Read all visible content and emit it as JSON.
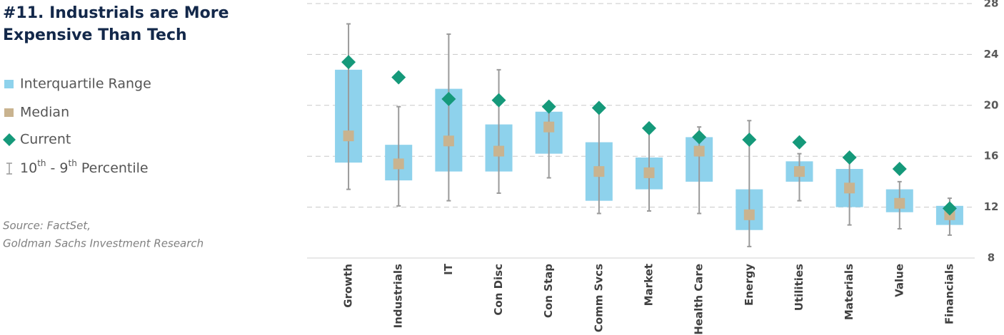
{
  "chart_data": {
    "type": "box",
    "title": [
      "#11. Industrials are More",
      "Expensive Than Tech"
    ],
    "source": [
      "Source: FactSet,",
      "Goldman Sachs Investment Research"
    ],
    "categories": [
      "Growth",
      "Industrials",
      "IT",
      "Con Disc",
      "Con Stap",
      "Comm Svcs",
      "Market",
      "Health Care",
      "Energy",
      "Utilities",
      "Materials",
      "Value",
      "Financials"
    ],
    "iqr": {
      "name": "Interquartile Range",
      "color": "#8ed2ec",
      "high": [
        22.8,
        16.9,
        21.3,
        18.5,
        19.5,
        17.1,
        15.9,
        17.5,
        13.4,
        15.6,
        15.0,
        13.4,
        12.1
      ],
      "low": [
        15.5,
        14.1,
        14.8,
        14.8,
        16.2,
        12.5,
        13.4,
        14.0,
        10.2,
        14.0,
        12.0,
        11.6,
        10.6
      ]
    },
    "median": {
      "name": "Median",
      "color": "#c9b38f",
      "values": [
        17.6,
        15.4,
        17.2,
        16.4,
        18.3,
        14.8,
        14.7,
        16.4,
        11.4,
        14.8,
        13.5,
        12.3,
        11.4
      ]
    },
    "current": {
      "name": "Current",
      "color": "#15997a",
      "values": [
        23.4,
        22.2,
        20.5,
        20.4,
        19.9,
        19.8,
        18.2,
        17.5,
        17.3,
        17.1,
        15.9,
        15.0,
        11.9
      ]
    },
    "whisker": {
      "name": [
        "10",
        "th",
        " - 9",
        "th",
        " Percentile"
      ],
      "color": "#9a9a9a",
      "high": [
        26.4,
        19.9,
        25.6,
        22.8,
        20.1,
        19.7,
        18.2,
        18.3,
        18.8,
        16.2,
        15.7,
        14.0,
        12.7
      ],
      "low": [
        13.4,
        12.1,
        12.5,
        13.1,
        14.3,
        11.5,
        11.7,
        11.5,
        8.9,
        12.5,
        10.6,
        10.3,
        9.8
      ]
    },
    "ylim": [
      8,
      28
    ],
    "yticks": [
      8,
      12,
      16,
      20,
      24,
      28
    ],
    "grid": true
  }
}
